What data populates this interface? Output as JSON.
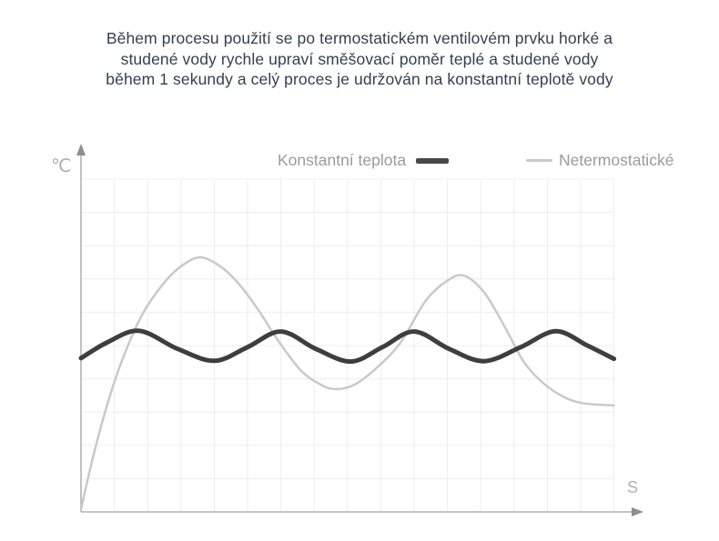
{
  "title": {
    "text": "Během procesu použití se po termostatickém ventilovém prvku horké a\nstudené vody rychle upraví směšovací poměr teplé a studené vody\nběhem 1 sekundy a celý proces je udržován na konstantní teplotě vody",
    "color": "#333f50"
  },
  "legend": {
    "text_color": "#9b9b9b",
    "items": [
      {
        "label": "Konstantní teplota",
        "swatch_color": "#48484a",
        "swatch_width": 36,
        "swatch_height": 6
      },
      {
        "label": "Netermostatické",
        "swatch_color": "#c9c9c9",
        "swatch_width": 29,
        "swatch_height": 3
      }
    ]
  },
  "chart_data": {
    "type": "line",
    "title": "",
    "xlabel": "S",
    "ylabel": "℃",
    "x_range": [
      0,
      16
    ],
    "y_range": [
      0,
      10
    ],
    "grid": true,
    "grid_color": "#ededed",
    "axis_color": "#b2b2b2",
    "arrow_color": "#8e8e8e",
    "axis_label_color": "#b0b0b0",
    "legend_position": "top",
    "series": [
      {
        "name": "Konstantní teplota",
        "color": "#3e3e40",
        "stroke_width": 5,
        "points": [
          [
            0,
            4.62
          ],
          [
            0.8,
            5.1
          ],
          [
            1.75,
            5.44
          ],
          [
            2.9,
            4.9
          ],
          [
            4.0,
            4.54
          ],
          [
            5.0,
            4.95
          ],
          [
            6.0,
            5.42
          ],
          [
            7.05,
            4.9
          ],
          [
            8.1,
            4.52
          ],
          [
            9.05,
            4.95
          ],
          [
            10.0,
            5.42
          ],
          [
            11.05,
            4.9
          ],
          [
            12.1,
            4.53
          ],
          [
            13.2,
            4.95
          ],
          [
            14.25,
            5.43
          ],
          [
            15.2,
            5.0
          ],
          [
            16,
            4.6
          ]
        ]
      },
      {
        "name": "Netermostatické",
        "color": "#c9c9c9",
        "stroke_width": 2.5,
        "points": [
          [
            0,
            0.08
          ],
          [
            0.35,
            1.6
          ],
          [
            0.75,
            3.1
          ],
          [
            1.25,
            4.6
          ],
          [
            1.85,
            5.95
          ],
          [
            2.55,
            6.95
          ],
          [
            3.1,
            7.45
          ],
          [
            3.6,
            7.65
          ],
          [
            4.15,
            7.4
          ],
          [
            4.7,
            6.9
          ],
          [
            5.3,
            6.1
          ],
          [
            5.95,
            5.1
          ],
          [
            6.6,
            4.25
          ],
          [
            7.15,
            3.85
          ],
          [
            7.6,
            3.69
          ],
          [
            8.2,
            3.82
          ],
          [
            8.9,
            4.35
          ],
          [
            9.6,
            5.1
          ],
          [
            10.35,
            6.35
          ],
          [
            11.0,
            6.95
          ],
          [
            11.5,
            7.1
          ],
          [
            12.1,
            6.6
          ],
          [
            12.7,
            5.6
          ],
          [
            13.3,
            4.5
          ],
          [
            13.9,
            3.85
          ],
          [
            14.5,
            3.45
          ],
          [
            15.1,
            3.26
          ],
          [
            16,
            3.2
          ]
        ]
      }
    ]
  }
}
